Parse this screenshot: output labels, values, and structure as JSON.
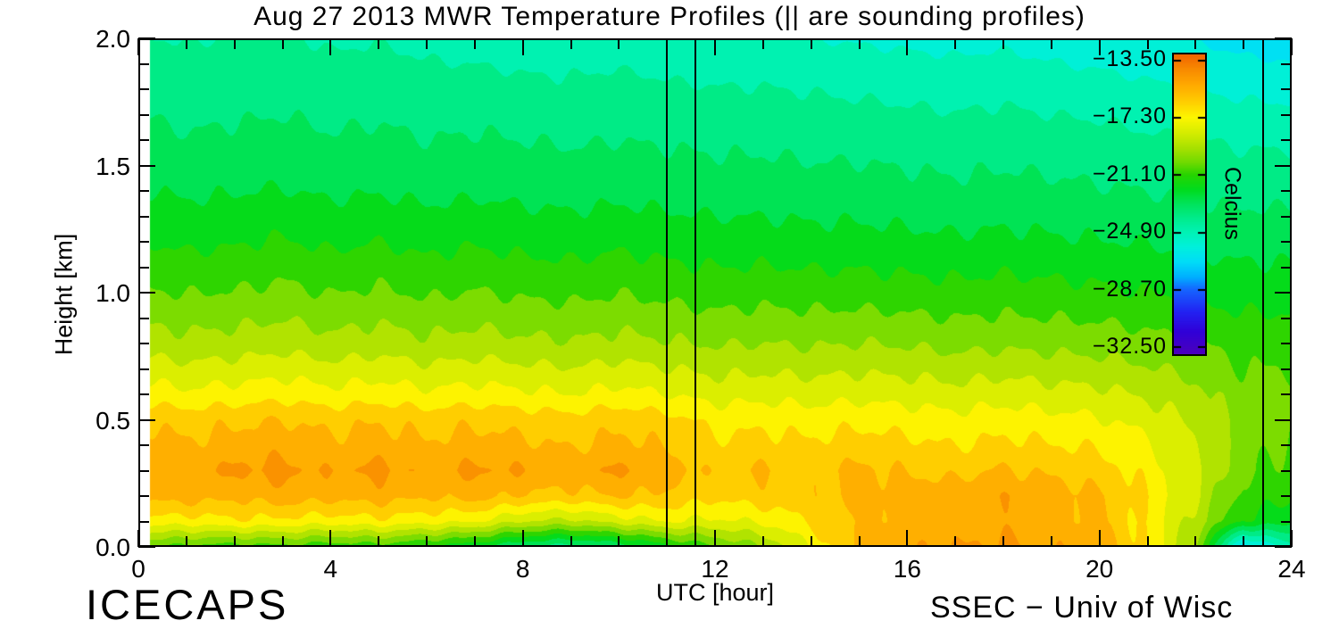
{
  "title": "Aug 27 2013 MWR Temperature Profiles (|| are sounding profiles)",
  "credits": {
    "left": "ICECAPS",
    "right": "SSEC − Univ of Wisc"
  },
  "axes": {
    "x": {
      "label": "UTC [hour]",
      "min": 0,
      "max": 24,
      "major_tick_values": [
        0,
        4,
        8,
        12,
        16,
        20,
        24
      ],
      "major_tick_labels": [
        "0",
        "4",
        "8",
        "12",
        "16",
        "20",
        "24"
      ],
      "minor_tick_interval_hours": 1
    },
    "y": {
      "label": "Height [km]",
      "min": 0,
      "max": 2,
      "major_tick_values": [
        2.0,
        1.5,
        1.0,
        0.5,
        0.0
      ],
      "major_tick_labels": [
        "2.0",
        "1.5",
        "1.0",
        "0.5",
        "0.0"
      ],
      "minor_tick_interval_km": 0.1
    }
  },
  "colorbar": {
    "title": "Celcius",
    "tick_values": [
      -13.5,
      -17.3,
      -21.1,
      -24.9,
      -28.7,
      -32.5
    ],
    "tick_labels": [
      "−13.50",
      "−17.30",
      "−21.10",
      "−24.90",
      "−28.70",
      "−32.50"
    ],
    "top_value": -13.15,
    "bottom_value": -32.97,
    "gradient_stops": [
      [
        -13.2,
        "#F26700"
      ],
      [
        -14.1,
        "#F88A00"
      ],
      [
        -15.1,
        "#FFA800"
      ],
      [
        -16.2,
        "#FFCB00"
      ],
      [
        -17.3,
        "#FDF600"
      ],
      [
        -18.4,
        "#D2EC00"
      ],
      [
        -19.4,
        "#A4E000"
      ],
      [
        -20.3,
        "#6FDA00"
      ],
      [
        -21.1,
        "#27D400"
      ],
      [
        -22.1,
        "#00DC1E"
      ],
      [
        -23.1,
        "#00E45F"
      ],
      [
        -24.0,
        "#00EC8C"
      ],
      [
        -24.9,
        "#00F2B4"
      ],
      [
        -25.9,
        "#00F0DC"
      ],
      [
        -26.9,
        "#00DCF8"
      ],
      [
        -27.9,
        "#00AFFF"
      ],
      [
        -28.7,
        "#1566FF"
      ],
      [
        -30.2,
        "#2222F2"
      ],
      [
        -31.5,
        "#3000D8"
      ],
      [
        -32.9,
        "#4A00BE"
      ]
    ]
  },
  "chart_data": {
    "type": "heatmap",
    "title": "Aug 27 2013 MWR Temperature Profiles (|| are sounding profiles)",
    "xlabel": "UTC [hour]",
    "ylabel": "Height [km]",
    "value_label": "Celcius",
    "x_range_hours": [
      0,
      24
    ],
    "y_range_km": [
      0,
      2
    ],
    "contour_interval_c": 0.95,
    "value_range_c": [
      -32.9,
      -13.2
    ],
    "sounding_profile_hours": [
      11.0,
      11.6,
      23.4
    ],
    "x_hours": [
      0,
      1,
      2,
      3,
      4,
      5,
      6,
      7,
      8,
      9,
      10,
      11,
      12,
      13,
      14,
      15,
      16,
      17,
      18,
      19,
      20,
      21,
      22,
      23,
      24
    ],
    "y_heights_km": [
      0.0,
      0.1,
      0.2,
      0.3,
      0.4,
      0.5,
      0.6,
      0.8,
      1.0,
      1.2,
      1.4,
      1.6,
      1.8,
      2.0
    ],
    "temperature_c_rows_by_height": [
      [
        -20.5,
        -20.8,
        -21.0,
        -20.8,
        -21.2,
        -21.0,
        -21.6,
        -22.2,
        -23.4,
        -23.8,
        -23.2,
        -21.8,
        -20.6,
        -19.6,
        -17.6,
        -15.4,
        -15.0,
        -14.9,
        -14.7,
        -15.0,
        -15.4,
        -16.9,
        -19.6,
        -27.0,
        -24.6
      ],
      [
        -17.0,
        -17.2,
        -16.9,
        -17.0,
        -17.2,
        -17.0,
        -17.3,
        -17.6,
        -18.6,
        -18.9,
        -18.2,
        -17.6,
        -17.9,
        -17.5,
        -16.6,
        -15.7,
        -15.4,
        -15.3,
        -15.2,
        -15.4,
        -15.7,
        -17.0,
        -19.0,
        -21.6,
        -22.1
      ],
      [
        -15.5,
        -15.3,
        -15.6,
        -15.2,
        -15.5,
        -15.3,
        -15.7,
        -15.4,
        -15.9,
        -16.1,
        -15.7,
        -16.0,
        -16.5,
        -16.2,
        -16.1,
        -15.6,
        -15.3,
        -15.2,
        -15.0,
        -15.3,
        -15.7,
        -16.9,
        -18.6,
        -20.8,
        -21.4
      ],
      [
        -14.7,
        -15.1,
        -14.7,
        -14.6,
        -15.0,
        -14.6,
        -15.1,
        -14.7,
        -14.9,
        -15.2,
        -14.7,
        -15.3,
        -16.1,
        -15.7,
        -16.0,
        -15.6,
        -15.9,
        -16.1,
        -15.7,
        -16.0,
        -16.3,
        -17.1,
        -18.4,
        -20.3,
        -20.9
      ],
      [
        -15.3,
        -15.7,
        -15.4,
        -15.2,
        -15.6,
        -15.3,
        -15.7,
        -15.4,
        -15.6,
        -15.9,
        -15.5,
        -15.9,
        -16.6,
        -16.4,
        -16.6,
        -16.3,
        -16.5,
        -16.8,
        -16.5,
        -16.7,
        -16.9,
        -17.5,
        -18.6,
        -20.2,
        -20.6
      ],
      [
        -15.9,
        -16.2,
        -16.0,
        -15.8,
        -16.1,
        -15.9,
        -16.2,
        -16.0,
        -16.2,
        -16.4,
        -16.1,
        -16.4,
        -17.1,
        -17.0,
        -17.2,
        -17.0,
        -17.2,
        -17.4,
        -17.2,
        -17.4,
        -17.6,
        -18.1,
        -18.9,
        -20.1,
        -20.3
      ],
      [
        -17.2,
        -17.5,
        -17.3,
        -17.1,
        -17.4,
        -17.2,
        -17.5,
        -17.3,
        -17.5,
        -17.7,
        -17.4,
        -17.7,
        -18.1,
        -18.0,
        -18.1,
        -18.0,
        -18.1,
        -18.3,
        -18.1,
        -18.3,
        -18.4,
        -18.8,
        -19.3,
        -20.2,
        -20.2
      ],
      [
        -19.1,
        -19.3,
        -19.2,
        -19.0,
        -19.3,
        -19.1,
        -19.4,
        -19.2,
        -19.4,
        -19.5,
        -19.3,
        -19.5,
        -19.7,
        -19.6,
        -19.7,
        -19.6,
        -19.7,
        -19.9,
        -19.8,
        -19.9,
        -20.0,
        -20.2,
        -20.5,
        -20.9,
        -20.9
      ],
      [
        -20.4,
        -20.6,
        -20.5,
        -20.3,
        -20.6,
        -20.4,
        -20.7,
        -20.5,
        -20.7,
        -20.8,
        -20.6,
        -20.8,
        -21.0,
        -20.9,
        -21.0,
        -21.0,
        -21.1,
        -21.2,
        -21.1,
        -21.2,
        -21.3,
        -21.5,
        -21.7,
        -21.9,
        -21.9
      ],
      [
        -21.5,
        -21.7,
        -21.6,
        -21.4,
        -21.7,
        -21.5,
        -21.8,
        -21.6,
        -21.8,
        -21.9,
        -21.7,
        -21.9,
        -22.0,
        -22.0,
        -22.1,
        -22.1,
        -22.2,
        -22.3,
        -22.2,
        -22.3,
        -22.4,
        -22.5,
        -22.7,
        -22.8,
        -22.8
      ],
      [
        -22.4,
        -22.6,
        -22.5,
        -22.4,
        -22.6,
        -22.5,
        -22.7,
        -22.6,
        -22.7,
        -22.8,
        -22.7,
        -22.8,
        -22.9,
        -22.9,
        -23.0,
        -23.0,
        -23.1,
        -23.2,
        -23.1,
        -23.2,
        -23.3,
        -23.4,
        -23.6,
        -23.7,
        -23.7
      ],
      [
        -23.1,
        -23.3,
        -23.2,
        -23.1,
        -23.3,
        -23.2,
        -23.4,
        -23.3,
        -23.4,
        -23.5,
        -23.4,
        -23.5,
        -23.6,
        -23.6,
        -23.7,
        -23.7,
        -23.8,
        -23.9,
        -23.8,
        -23.9,
        -24.0,
        -24.2,
        -24.3,
        -24.5,
        -24.5
      ],
      [
        -23.7,
        -23.9,
        -23.8,
        -23.7,
        -23.9,
        -23.8,
        -24.0,
        -23.9,
        -24.1,
        -24.2,
        -24.0,
        -24.2,
        -24.3,
        -24.3,
        -24.4,
        -24.5,
        -24.6,
        -24.7,
        -24.6,
        -24.8,
        -24.9,
        -25.1,
        -25.3,
        -25.5,
        -25.6
      ],
      [
        -24.3,
        -24.4,
        -24.3,
        -24.2,
        -24.5,
        -24.4,
        -24.6,
        -24.8,
        -24.9,
        -24.8,
        -24.9,
        -25.0,
        -25.1,
        -25.1,
        -25.3,
        -25.4,
        -25.5,
        -25.6,
        -25.5,
        -25.7,
        -25.9,
        -26.1,
        -26.3,
        -26.6,
        -26.8
      ]
    ]
  }
}
